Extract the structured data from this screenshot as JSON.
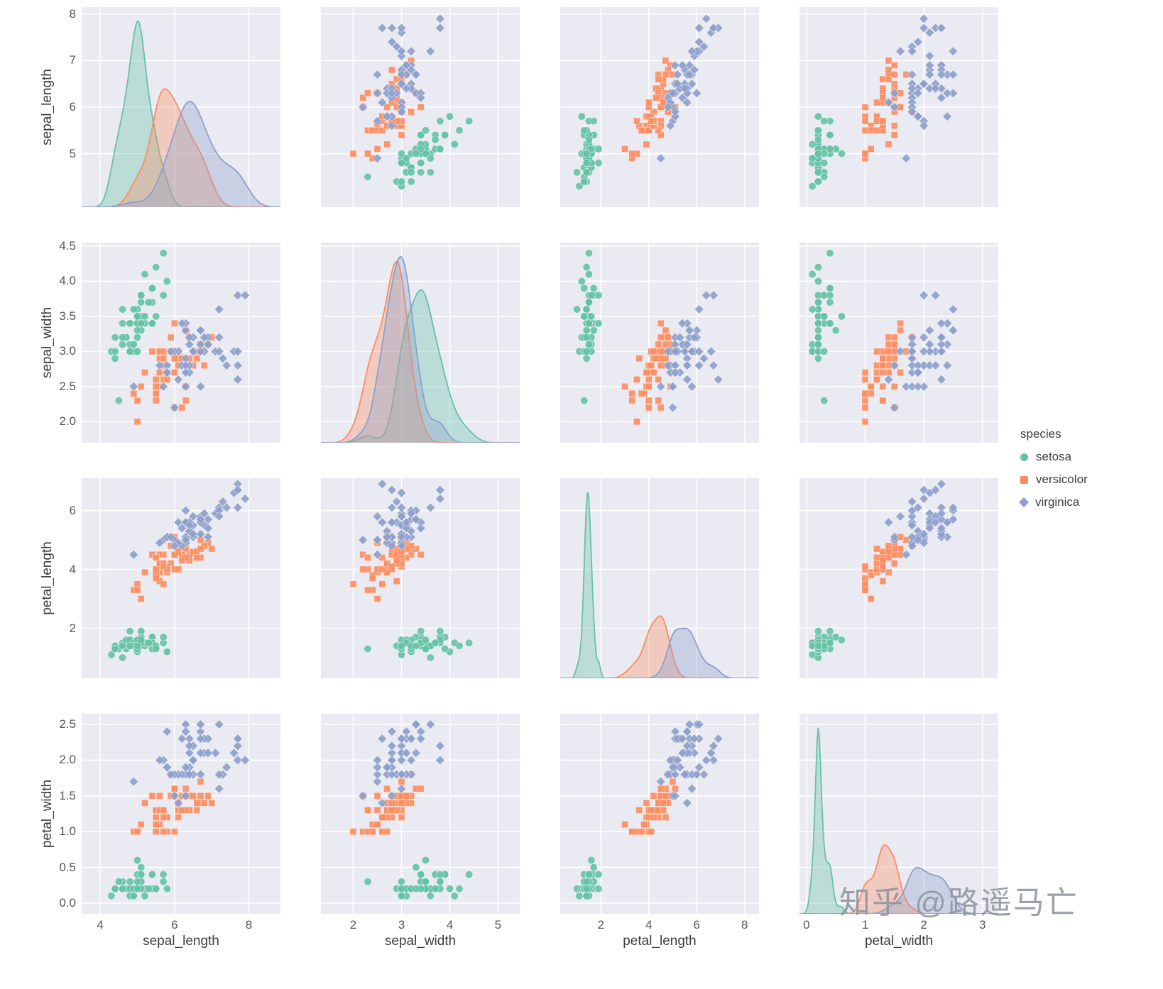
{
  "figure": {
    "background": "#ffffff",
    "panel_background": "#eaeaf2",
    "grid_color": "#ffffff",
    "tick_color": "#555555",
    "label_color": "#3d3d3d"
  },
  "watermark": "知乎 @路遥马亡",
  "chart_data": {
    "type": "scatter",
    "subtype": "pairplot",
    "title": "",
    "grid": true,
    "diagonal": "kde",
    "variables": [
      "sepal_length",
      "sepal_width",
      "petal_length",
      "petal_width"
    ],
    "legend": {
      "title": "species",
      "position": "right",
      "entries": [
        {
          "label": "setosa",
          "color": "#66c2a5",
          "marker": "circle"
        },
        {
          "label": "versicolor",
          "color": "#fc8d62",
          "marker": "square"
        },
        {
          "label": "virginica",
          "color": "#8da0cb",
          "marker": "diamond"
        }
      ]
    },
    "axes": [
      {
        "var": "sepal_length",
        "x_range": [
          3.5,
          8.85
        ],
        "y_range": [
          3.85,
          8.15
        ],
        "x_ticks": [
          4,
          6,
          8
        ],
        "x_tick_labels": [
          "4",
          "6",
          "8"
        ],
        "y_ticks": [
          5,
          6,
          7,
          8
        ],
        "y_tick_labels": [
          "5",
          "6",
          "7",
          "8"
        ]
      },
      {
        "var": "sepal_width",
        "x_range": [
          1.33,
          5.45
        ],
        "y_range": [
          1.7,
          4.55
        ],
        "x_ticks": [
          2,
          3,
          4,
          5
        ],
        "x_tick_labels": [
          "2",
          "3",
          "4",
          "5"
        ],
        "y_ticks": [
          2.0,
          2.5,
          3.0,
          3.5,
          4.0,
          4.5
        ],
        "y_tick_labels": [
          "2.0",
          "2.5",
          "3.0",
          "3.5",
          "4.0",
          "4.5"
        ]
      },
      {
        "var": "petal_length",
        "x_range": [
          0.3,
          8.6
        ],
        "y_range": [
          0.3,
          7.1
        ],
        "x_ticks": [
          2,
          4,
          6,
          8
        ],
        "x_tick_labels": [
          "2",
          "4",
          "6",
          "8"
        ],
        "y_ticks": [
          2,
          4,
          6
        ],
        "y_tick_labels": [
          "2",
          "4",
          "6"
        ]
      },
      {
        "var": "petal_width",
        "x_range": [
          -0.12,
          3.27
        ],
        "y_range": [
          -0.15,
          2.65
        ],
        "x_ticks": [
          0,
          1,
          2,
          3
        ],
        "x_tick_labels": [
          "0",
          "1",
          "2",
          "3"
        ],
        "y_ticks": [
          0.0,
          0.5,
          1.0,
          1.5,
          2.0,
          2.5
        ],
        "y_tick_labels": [
          "0.0",
          "0.5",
          "1.0",
          "1.5",
          "2.0",
          "2.5"
        ]
      }
    ],
    "series": [
      {
        "name": "setosa",
        "color": "#66c2a5",
        "marker": "circle",
        "points": [
          [
            5.1,
            3.5,
            1.4,
            0.2
          ],
          [
            4.9,
            3.0,
            1.4,
            0.2
          ],
          [
            4.7,
            3.2,
            1.3,
            0.2
          ],
          [
            4.6,
            3.1,
            1.5,
            0.2
          ],
          [
            5.0,
            3.6,
            1.4,
            0.2
          ],
          [
            5.4,
            3.9,
            1.7,
            0.4
          ],
          [
            4.6,
            3.4,
            1.4,
            0.3
          ],
          [
            5.0,
            3.4,
            1.5,
            0.2
          ],
          [
            4.4,
            2.9,
            1.4,
            0.2
          ],
          [
            4.9,
            3.1,
            1.5,
            0.1
          ],
          [
            5.4,
            3.7,
            1.5,
            0.2
          ],
          [
            4.8,
            3.4,
            1.6,
            0.2
          ],
          [
            4.8,
            3.0,
            1.4,
            0.1
          ],
          [
            4.3,
            3.0,
            1.1,
            0.1
          ],
          [
            5.8,
            4.0,
            1.2,
            0.2
          ],
          [
            5.7,
            4.4,
            1.5,
            0.4
          ],
          [
            5.4,
            3.9,
            1.3,
            0.4
          ],
          [
            5.1,
            3.5,
            1.4,
            0.3
          ],
          [
            5.7,
            3.8,
            1.7,
            0.3
          ],
          [
            5.1,
            3.8,
            1.5,
            0.3
          ],
          [
            5.4,
            3.4,
            1.7,
            0.2
          ],
          [
            5.1,
            3.7,
            1.5,
            0.4
          ],
          [
            4.6,
            3.6,
            1.0,
            0.2
          ],
          [
            5.1,
            3.3,
            1.7,
            0.5
          ],
          [
            4.8,
            3.4,
            1.9,
            0.2
          ],
          [
            5.0,
            3.0,
            1.6,
            0.2
          ],
          [
            5.0,
            3.4,
            1.6,
            0.4
          ],
          [
            5.2,
            3.5,
            1.5,
            0.2
          ],
          [
            5.2,
            3.4,
            1.4,
            0.2
          ],
          [
            4.7,
            3.2,
            1.6,
            0.2
          ],
          [
            4.8,
            3.1,
            1.6,
            0.2
          ],
          [
            5.4,
            3.4,
            1.5,
            0.4
          ],
          [
            5.2,
            4.1,
            1.5,
            0.1
          ],
          [
            5.5,
            4.2,
            1.4,
            0.2
          ],
          [
            4.9,
            3.1,
            1.5,
            0.2
          ],
          [
            5.0,
            3.2,
            1.2,
            0.2
          ],
          [
            5.5,
            3.5,
            1.3,
            0.2
          ],
          [
            4.9,
            3.6,
            1.4,
            0.1
          ],
          [
            4.4,
            3.0,
            1.3,
            0.2
          ],
          [
            5.1,
            3.4,
            1.5,
            0.2
          ],
          [
            5.0,
            3.5,
            1.3,
            0.3
          ],
          [
            4.5,
            2.3,
            1.3,
            0.3
          ],
          [
            4.4,
            3.2,
            1.3,
            0.2
          ],
          [
            5.0,
            3.5,
            1.6,
            0.6
          ],
          [
            5.1,
            3.8,
            1.9,
            0.4
          ],
          [
            4.8,
            3.0,
            1.4,
            0.3
          ],
          [
            5.1,
            3.8,
            1.6,
            0.2
          ],
          [
            4.6,
            3.2,
            1.4,
            0.2
          ],
          [
            5.3,
            3.7,
            1.5,
            0.2
          ],
          [
            5.0,
            3.3,
            1.4,
            0.2
          ]
        ]
      },
      {
        "name": "versicolor",
        "color": "#fc8d62",
        "marker": "square",
        "points": [
          [
            7.0,
            3.2,
            4.7,
            1.4
          ],
          [
            6.4,
            3.2,
            4.5,
            1.5
          ],
          [
            6.9,
            3.1,
            4.9,
            1.5
          ],
          [
            5.5,
            2.3,
            4.0,
            1.3
          ],
          [
            6.5,
            2.8,
            4.6,
            1.5
          ],
          [
            5.7,
            2.8,
            4.5,
            1.3
          ],
          [
            6.3,
            3.3,
            4.7,
            1.6
          ],
          [
            4.9,
            2.4,
            3.3,
            1.0
          ],
          [
            6.6,
            2.9,
            4.6,
            1.3
          ],
          [
            5.2,
            2.7,
            3.9,
            1.4
          ],
          [
            5.0,
            2.0,
            3.5,
            1.0
          ],
          [
            5.9,
            3.0,
            4.2,
            1.5
          ],
          [
            6.0,
            2.2,
            4.0,
            1.0
          ],
          [
            6.1,
            2.9,
            4.7,
            1.4
          ],
          [
            5.6,
            2.9,
            3.6,
            1.3
          ],
          [
            6.7,
            3.1,
            4.4,
            1.4
          ],
          [
            5.6,
            3.0,
            4.5,
            1.5
          ],
          [
            5.8,
            2.7,
            4.1,
            1.0
          ],
          [
            6.2,
            2.2,
            4.5,
            1.5
          ],
          [
            5.6,
            2.5,
            3.9,
            1.1
          ],
          [
            5.9,
            3.2,
            4.8,
            1.8
          ],
          [
            6.1,
            2.8,
            4.0,
            1.3
          ],
          [
            6.3,
            2.5,
            4.9,
            1.5
          ],
          [
            6.1,
            2.8,
            4.7,
            1.2
          ],
          [
            6.4,
            2.9,
            4.3,
            1.3
          ],
          [
            6.6,
            3.0,
            4.4,
            1.4
          ],
          [
            6.8,
            2.8,
            4.8,
            1.4
          ],
          [
            6.7,
            3.0,
            5.0,
            1.7
          ],
          [
            6.0,
            2.9,
            4.5,
            1.5
          ],
          [
            5.7,
            2.6,
            3.5,
            1.0
          ],
          [
            5.5,
            2.4,
            3.8,
            1.1
          ],
          [
            5.5,
            2.4,
            3.7,
            1.0
          ],
          [
            5.8,
            2.7,
            3.9,
            1.2
          ],
          [
            6.0,
            2.7,
            5.1,
            1.6
          ],
          [
            5.4,
            3.0,
            4.5,
            1.5
          ],
          [
            6.0,
            3.4,
            4.5,
            1.6
          ],
          [
            6.7,
            3.1,
            4.7,
            1.5
          ],
          [
            6.3,
            2.3,
            4.4,
            1.3
          ],
          [
            5.6,
            3.0,
            4.1,
            1.3
          ],
          [
            5.5,
            2.5,
            4.0,
            1.3
          ],
          [
            5.5,
            2.6,
            4.4,
            1.2
          ],
          [
            6.1,
            3.0,
            4.6,
            1.4
          ],
          [
            5.8,
            2.6,
            4.0,
            1.2
          ],
          [
            5.0,
            2.3,
            3.3,
            1.0
          ],
          [
            5.6,
            2.7,
            4.2,
            1.3
          ],
          [
            5.7,
            3.0,
            4.2,
            1.2
          ],
          [
            5.7,
            2.9,
            4.2,
            1.3
          ],
          [
            6.2,
            2.9,
            4.3,
            1.3
          ],
          [
            5.1,
            2.5,
            3.0,
            1.1
          ],
          [
            5.7,
            2.8,
            4.1,
            1.3
          ]
        ]
      },
      {
        "name": "virginica",
        "color": "#8da0cb",
        "marker": "diamond",
        "points": [
          [
            6.3,
            3.3,
            6.0,
            2.5
          ],
          [
            5.8,
            2.7,
            5.1,
            1.9
          ],
          [
            7.1,
            3.0,
            5.9,
            2.1
          ],
          [
            6.3,
            2.9,
            5.6,
            1.8
          ],
          [
            6.5,
            3.0,
            5.8,
            2.2
          ],
          [
            7.6,
            3.0,
            6.6,
            2.1
          ],
          [
            4.9,
            2.5,
            4.5,
            1.7
          ],
          [
            7.3,
            2.9,
            6.3,
            1.8
          ],
          [
            6.7,
            2.5,
            5.8,
            1.8
          ],
          [
            7.2,
            3.6,
            6.1,
            2.5
          ],
          [
            6.5,
            3.2,
            5.1,
            2.0
          ],
          [
            6.4,
            2.7,
            5.3,
            1.9
          ],
          [
            6.8,
            3.0,
            5.5,
            2.1
          ],
          [
            5.7,
            2.5,
            5.0,
            2.0
          ],
          [
            5.8,
            2.8,
            5.1,
            2.4
          ],
          [
            6.4,
            3.2,
            5.3,
            2.3
          ],
          [
            6.5,
            3.0,
            5.5,
            1.8
          ],
          [
            7.7,
            3.8,
            6.7,
            2.2
          ],
          [
            7.7,
            2.6,
            6.9,
            2.3
          ],
          [
            6.0,
            2.2,
            5.0,
            1.5
          ],
          [
            6.9,
            3.2,
            5.7,
            2.3
          ],
          [
            5.6,
            2.8,
            4.9,
            2.0
          ],
          [
            7.7,
            2.8,
            6.7,
            2.0
          ],
          [
            6.3,
            2.7,
            4.9,
            1.8
          ],
          [
            6.7,
            3.3,
            5.7,
            2.1
          ],
          [
            7.2,
            3.2,
            6.0,
            1.8
          ],
          [
            6.2,
            2.8,
            4.8,
            1.8
          ],
          [
            6.1,
            3.0,
            4.9,
            1.8
          ],
          [
            6.4,
            2.8,
            5.6,
            2.1
          ],
          [
            7.2,
            3.0,
            5.8,
            1.6
          ],
          [
            7.4,
            2.8,
            6.1,
            1.9
          ],
          [
            7.9,
            3.8,
            6.4,
            2.0
          ],
          [
            6.4,
            2.8,
            5.6,
            2.2
          ],
          [
            6.3,
            2.8,
            5.1,
            1.5
          ],
          [
            6.1,
            2.6,
            5.6,
            1.4
          ],
          [
            7.7,
            3.0,
            6.1,
            2.3
          ],
          [
            6.3,
            3.4,
            5.6,
            2.4
          ],
          [
            6.4,
            3.1,
            5.5,
            1.8
          ],
          [
            6.0,
            3.0,
            4.8,
            1.8
          ],
          [
            6.9,
            3.1,
            5.4,
            2.1
          ],
          [
            6.7,
            3.1,
            5.6,
            2.4
          ],
          [
            6.9,
            3.1,
            5.1,
            2.3
          ],
          [
            5.8,
            2.7,
            5.1,
            1.9
          ],
          [
            6.8,
            3.2,
            5.9,
            2.3
          ],
          [
            6.7,
            3.3,
            5.7,
            2.5
          ],
          [
            6.7,
            3.0,
            5.2,
            2.3
          ],
          [
            6.3,
            2.5,
            5.0,
            1.9
          ],
          [
            6.5,
            3.0,
            5.2,
            2.0
          ],
          [
            6.2,
            3.4,
            5.4,
            2.3
          ],
          [
            5.9,
            3.0,
            5.1,
            1.8
          ]
        ]
      }
    ]
  }
}
